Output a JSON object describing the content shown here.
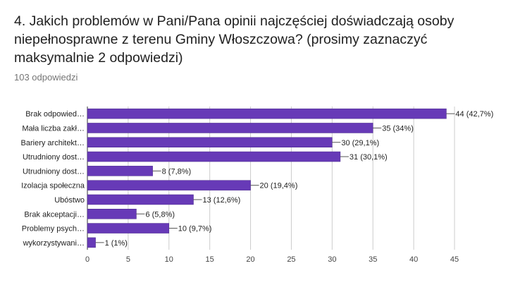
{
  "question": {
    "title": "4. Jakich problemów w Pani/Pana opinii najczęściej doświadczają osoby niepełnosprawne z terenu Gminy Włoszczowa? (prosimy zaznaczyć maksymalnie 2 odpowiedzi)",
    "response_count": "103 odpowiedzi"
  },
  "colors": {
    "bar": "#673ab7",
    "bar_edge": "#4a2a8a",
    "grid": "#cccccc",
    "axis": "#333333"
  },
  "chart_data": {
    "type": "bar",
    "orientation": "horizontal",
    "categories": [
      "Brak odpowied…",
      "Mała liczba zakł…",
      "Bariery architekt…",
      "Utrudniony dost…",
      "Utrudniony dost…",
      "Izolacja społeczna",
      "Ubóstwo",
      "Brak akceptacji…",
      "Problemy psych…",
      "wykorzystywani…"
    ],
    "values": [
      44,
      35,
      30,
      31,
      8,
      20,
      13,
      6,
      10,
      1
    ],
    "value_labels": [
      "44 (42,7%)",
      "35 (34%)",
      "30 (29,1%)",
      "31 (30,1%)",
      "8 (7,8%)",
      "20 (19,4%)",
      "13 (12,6%)",
      "6 (5,8%)",
      "10 (9,7%)",
      "1 (1%)"
    ],
    "xlim": [
      0,
      45
    ],
    "xticks": [
      0,
      5,
      10,
      15,
      20,
      25,
      30,
      35,
      40,
      45
    ],
    "grid": true
  }
}
